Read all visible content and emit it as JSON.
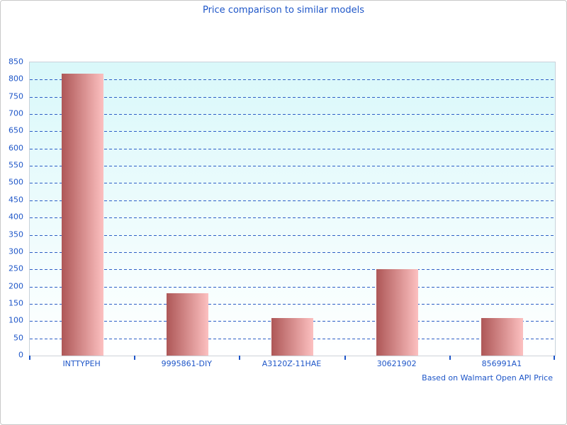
{
  "page": {
    "title": "Price comparison to similar models",
    "footer_note": "Based on Walmart Open API Price"
  },
  "chart_data": {
    "type": "bar",
    "title": "Price comparison to similar models",
    "note": "Based on Walmart Open API Price",
    "categories": [
      "INTTYPEH",
      "9995861-DIY",
      "A3120Z-11HAE",
      "30621902",
      "856991A1"
    ],
    "values": [
      818,
      180,
      108,
      250,
      108
    ],
    "xlabel": "",
    "ylabel": "",
    "ylim": [
      0,
      850
    ],
    "ytick_step": 50,
    "ytick_labels": [
      "0",
      "50",
      "100",
      "150",
      "200",
      "250",
      "300",
      "350",
      "400",
      "450",
      "500",
      "550",
      "600",
      "650",
      "700",
      "750",
      "800",
      "850"
    ],
    "grid": "horizontal-dashed",
    "legend": "none"
  },
  "colors": {
    "text_blue": "#1e56c8",
    "gridline_blue": "#2d5ec5",
    "plot_bg_top": "#d9f8fa",
    "plot_bg_bottom": "#ffffff",
    "bar_gradient_left": "#ae5757",
    "bar_gradient_right": "#fcc0c0",
    "plot_border": "#c8d2da",
    "axis_line": "#ccd2d8",
    "page_border": "#c9c9c9"
  }
}
